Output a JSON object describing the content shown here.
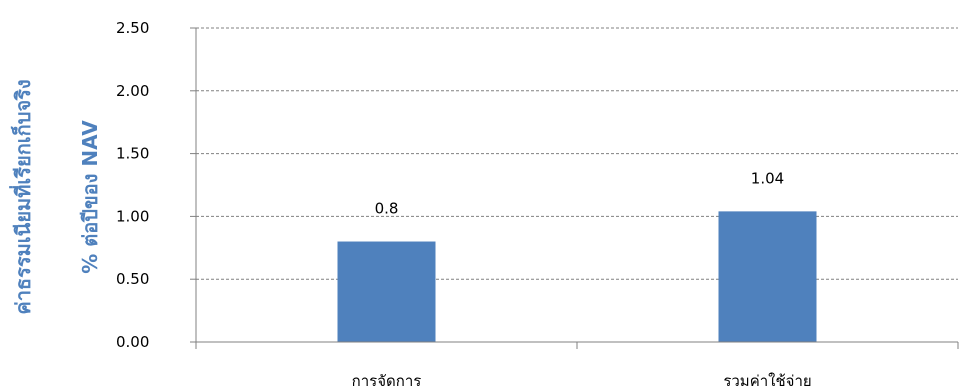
{
  "chart_data": {
    "type": "bar",
    "categories": [
      "การจัดการ",
      "รวมค่าใช้จ่าย"
    ],
    "values": [
      0.8,
      1.04
    ],
    "data_labels": [
      "0.8",
      "1.04"
    ],
    "ylabel_lines": [
      "ค่าธรรมเนียมที่เรียกเก็บจริง",
      "% ต่อปีของ NAV"
    ],
    "ylim": [
      0,
      2.5
    ],
    "yticks": [
      "0.00",
      "0.50",
      "1.00",
      "1.50",
      "2.00",
      "2.50"
    ],
    "grid": true,
    "legend": "none",
    "colors": {
      "bar": "#4f81bd",
      "grid": "#808080",
      "axis": "#808080",
      "ylabel": "#4f81bd"
    }
  }
}
